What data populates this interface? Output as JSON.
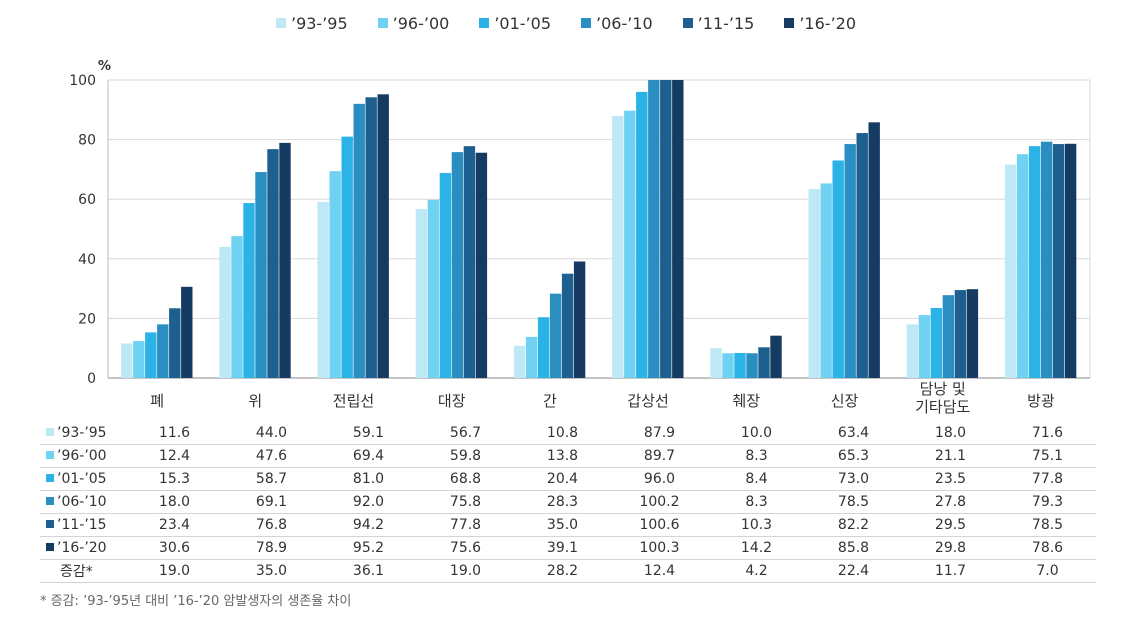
{
  "chart_data": {
    "type": "bar",
    "ylabel": "%",
    "ylim": [
      0,
      100
    ],
    "yticks": [
      0,
      20,
      40,
      60,
      80,
      100
    ],
    "grid": true,
    "legend_position": "top-center",
    "categories": [
      "폐",
      "위",
      "전립선",
      "대장",
      "간",
      "갑상선",
      "췌장",
      "신장",
      "담낭 및\n기타담도",
      "방광"
    ],
    "series": [
      {
        "name": "'93-'95",
        "color": "#bfe8f7",
        "values": [
          11.6,
          44.0,
          59.1,
          56.7,
          10.8,
          87.9,
          10.0,
          63.4,
          18.0,
          71.6
        ]
      },
      {
        "name": "'96-'00",
        "color": "#6fd2f2",
        "values": [
          12.4,
          47.6,
          69.4,
          59.8,
          13.8,
          89.7,
          8.3,
          65.3,
          21.1,
          75.1
        ]
      },
      {
        "name": "'01-'05",
        "color": "#2bb3e8",
        "values": [
          15.3,
          58.7,
          81.0,
          68.8,
          20.4,
          96.0,
          8.4,
          73.0,
          23.5,
          77.8
        ]
      },
      {
        "name": "'06-'10",
        "color": "#2a8fc0",
        "values": [
          18.0,
          69.1,
          92.0,
          75.8,
          28.3,
          100.2,
          8.3,
          78.5,
          27.8,
          79.3
        ]
      },
      {
        "name": "'11-'15",
        "color": "#1d5f8e",
        "values": [
          23.4,
          76.8,
          94.2,
          77.8,
          35.0,
          100.6,
          10.3,
          82.2,
          29.5,
          78.5
        ]
      },
      {
        "name": "'16-'20",
        "color": "#163b62",
        "values": [
          30.6,
          78.9,
          95.2,
          75.6,
          39.1,
          100.3,
          14.2,
          85.8,
          29.8,
          78.6
        ]
      }
    ],
    "table": {
      "total_label": "증감*",
      "total_values": [
        "19.0",
        "35.0",
        "36.1",
        "19.0",
        "28.2",
        "12.4",
        "4.2",
        "22.4",
        "11.7",
        "7.0"
      ]
    },
    "footnote": "* 증감: '93-'95년 대비 '16-'20 암발생자의 생존율 차이"
  }
}
